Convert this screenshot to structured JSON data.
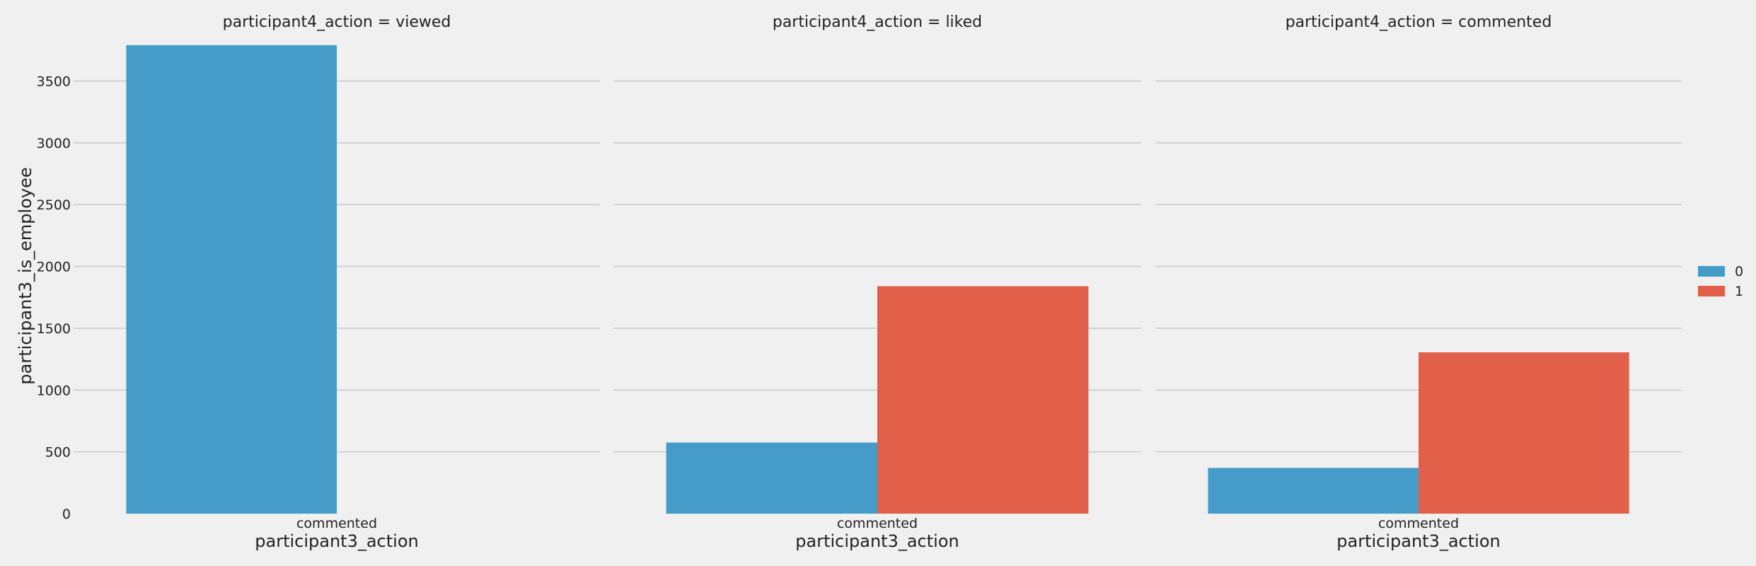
{
  "chart_data": {
    "type": "bar",
    "ylabel": "participant3_is_employee",
    "ylim": [
      0,
      3800
    ],
    "yticks": [
      0,
      500,
      1000,
      1500,
      2000,
      2500,
      3000,
      3500
    ],
    "grid": true,
    "legend": {
      "position": "right",
      "entries": [
        "0",
        "1"
      ]
    },
    "colors": {
      "0": "#459cc9",
      "1": "#e2604a"
    },
    "facets": [
      {
        "title": "participant4_action = viewed",
        "xlabel": "participant3_action",
        "categories": [
          "commented"
        ],
        "series": [
          {
            "name": "0",
            "values": [
              3790
            ]
          },
          {
            "name": "1",
            "values": [
              0
            ]
          }
        ]
      },
      {
        "title": "participant4_action = liked",
        "xlabel": "participant3_action",
        "categories": [
          "commented"
        ],
        "series": [
          {
            "name": "0",
            "values": [
              575
            ]
          },
          {
            "name": "1",
            "values": [
              1840
            ]
          }
        ]
      },
      {
        "title": "participant4_action = commented",
        "xlabel": "participant3_action",
        "categories": [
          "commented"
        ],
        "series": [
          {
            "name": "0",
            "values": [
              370
            ]
          },
          {
            "name": "1",
            "values": [
              1305
            ]
          }
        ]
      }
    ]
  }
}
